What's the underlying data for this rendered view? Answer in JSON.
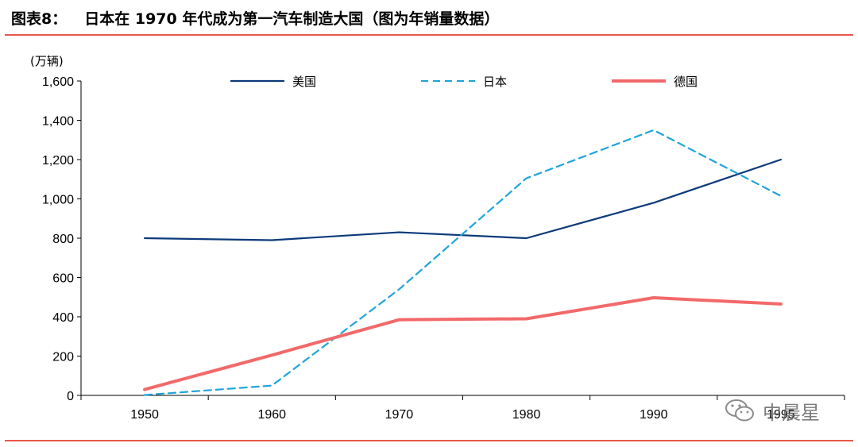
{
  "header": {
    "figure_no": "图表8：",
    "title": "日本在 1970 年代成为第一汽车制造大国（图为年销量数据）"
  },
  "watermark": {
    "text": "中晨星",
    "icon": "wechat-icon"
  },
  "colors": {
    "rule": "#e8574a",
    "usa": "#0c3a7a",
    "japan": "#1fa4dc",
    "germany": "#f2696a",
    "axis": "#000000"
  },
  "chart_data": {
    "type": "line",
    "title": "",
    "ylabel": "(万辆)",
    "xlabel": "",
    "categories": [
      "1950",
      "1960",
      "1970",
      "1980",
      "1990",
      "1995"
    ],
    "ylim": [
      0,
      1600
    ],
    "yticks": [
      0,
      200,
      400,
      600,
      800,
      1000,
      1200,
      1400,
      1600
    ],
    "ytick_labels": [
      "0",
      "200",
      "400",
      "600",
      "800",
      "1,000",
      "1,200",
      "1,400",
      "1,600"
    ],
    "grid": false,
    "legend_position": "top",
    "series": [
      {
        "name": "美国",
        "style": "solid",
        "color": "#0c3a7a",
        "values": [
          800,
          790,
          830,
          800,
          980,
          1200
        ]
      },
      {
        "name": "日本",
        "style": "dashed",
        "color": "#1fa4dc",
        "values": [
          2,
          50,
          540,
          1105,
          1350,
          1015
        ]
      },
      {
        "name": "德国",
        "style": "solid-thick",
        "color": "#f2696a",
        "values": [
          30,
          205,
          385,
          390,
          497,
          465
        ]
      }
    ]
  }
}
